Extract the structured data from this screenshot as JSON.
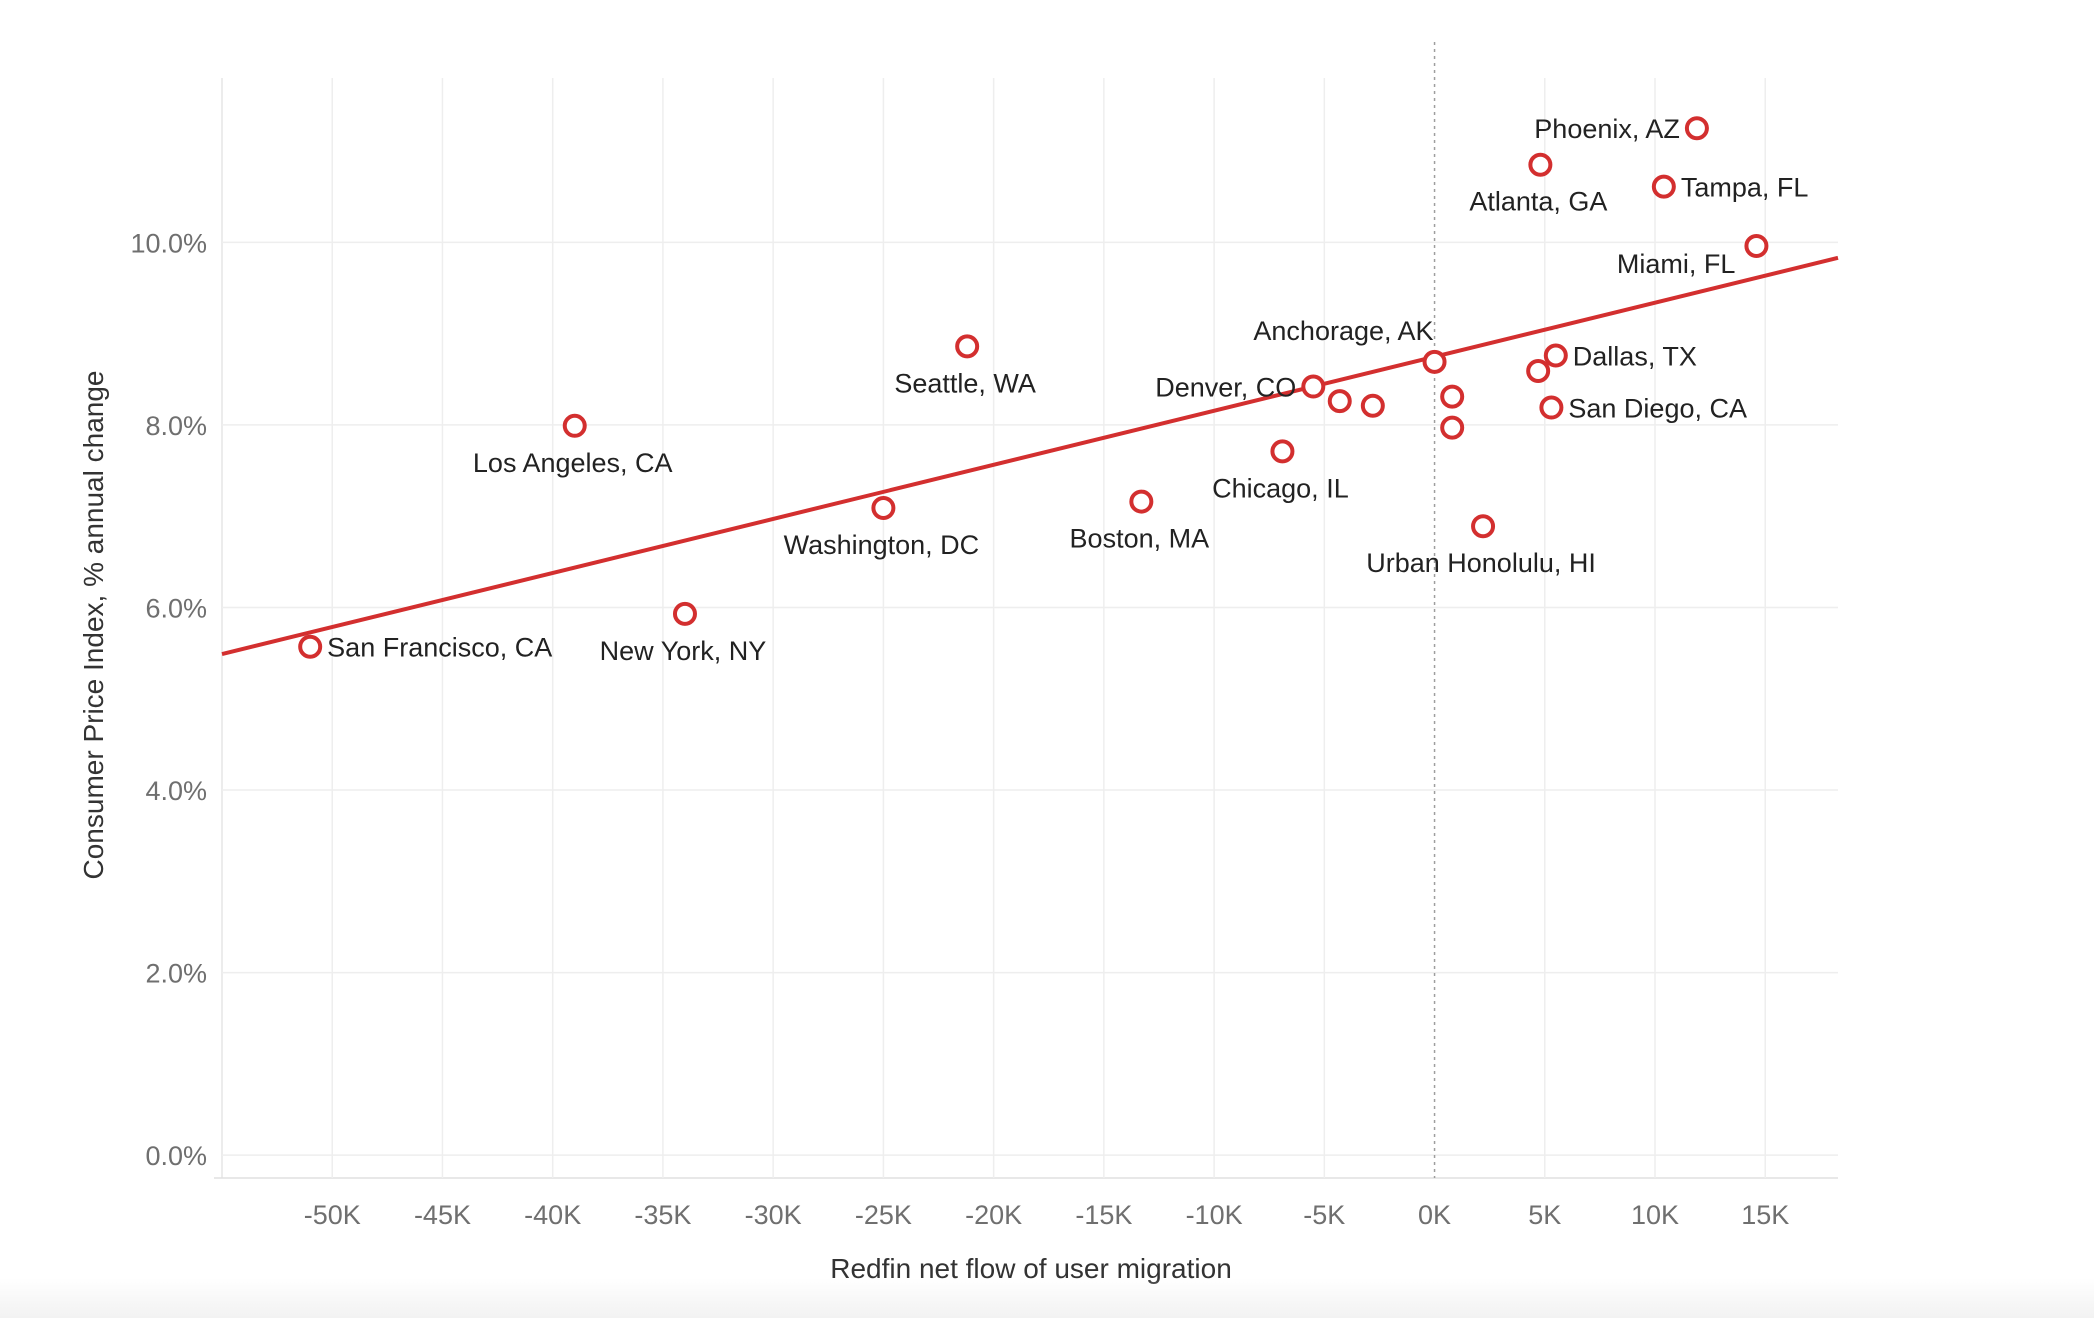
{
  "chart_data": {
    "type": "scatter",
    "title": "",
    "xlabel": "Redfin net flow of user migration",
    "ylabel": "Consumer Price Index, % annual change",
    "xlim": [
      -55,
      18.3
    ],
    "ylim": [
      -0.25,
      11.8
    ],
    "x_ticks": [
      {
        "value": -50,
        "label": "-50K"
      },
      {
        "value": -45,
        "label": "-45K"
      },
      {
        "value": -40,
        "label": "-40K"
      },
      {
        "value": -35,
        "label": "-35K"
      },
      {
        "value": -30,
        "label": "-30K"
      },
      {
        "value": -25,
        "label": "-25K"
      },
      {
        "value": -20,
        "label": "-20K"
      },
      {
        "value": -15,
        "label": "-15K"
      },
      {
        "value": -10,
        "label": "-10K"
      },
      {
        "value": -5,
        "label": "-5K"
      },
      {
        "value": 0,
        "label": "0K"
      },
      {
        "value": 5,
        "label": "5K"
      },
      {
        "value": 10,
        "label": "10K"
      },
      {
        "value": 15,
        "label": "15K"
      }
    ],
    "y_ticks": [
      {
        "value": 0,
        "label": "0.0%"
      },
      {
        "value": 2,
        "label": "2.0%"
      },
      {
        "value": 4,
        "label": "4.0%"
      },
      {
        "value": 6,
        "label": "6.0%"
      },
      {
        "value": 8,
        "label": "8.0%"
      },
      {
        "value": 10,
        "label": "10.0%"
      }
    ],
    "grid": true,
    "zero_reference_line": {
      "x": 0,
      "style": "dotted"
    },
    "marker_color": "#d32f2f",
    "trend_color": "#d32f2f",
    "points": [
      {
        "label": "San Francisco, CA",
        "x": -51.0,
        "y": 5.57,
        "label_pos": "right"
      },
      {
        "label": "Los Angeles, CA",
        "x": -39.0,
        "y": 7.99,
        "label_pos": "below"
      },
      {
        "label": "New York, NY",
        "x": -34.0,
        "y": 5.93,
        "label_pos": "below"
      },
      {
        "label": "Washington, DC",
        "x": -25.0,
        "y": 7.09,
        "label_pos": "below"
      },
      {
        "label": "Seattle, WA",
        "x": -21.2,
        "y": 8.86,
        "label_pos": "below"
      },
      {
        "label": "Boston, MA",
        "x": -13.3,
        "y": 7.16,
        "label_pos": "below"
      },
      {
        "label": "Chicago, IL",
        "x": -6.9,
        "y": 7.71,
        "label_pos": "below"
      },
      {
        "label": "Denver, CO",
        "x": -5.5,
        "y": 8.42,
        "label_pos": "left"
      },
      {
        "label": "",
        "x": -4.3,
        "y": 8.26,
        "label_pos": "none"
      },
      {
        "label": "",
        "x": -2.8,
        "y": 8.21,
        "label_pos": "none"
      },
      {
        "label": "Anchorage, AK",
        "x": 0.0,
        "y": 8.69,
        "label_pos": "above-left"
      },
      {
        "label": "",
        "x": 0.8,
        "y": 8.31,
        "label_pos": "none"
      },
      {
        "label": "",
        "x": 0.8,
        "y": 7.97,
        "label_pos": "none"
      },
      {
        "label": "Urban Honolulu, HI",
        "x": 2.2,
        "y": 6.89,
        "label_pos": "below"
      },
      {
        "label": "",
        "x": 4.7,
        "y": 8.59,
        "label_pos": "none"
      },
      {
        "label": "Atlanta, GA",
        "x": 4.8,
        "y": 10.85,
        "label_pos": "below"
      },
      {
        "label": "San Diego, CA",
        "x": 5.3,
        "y": 8.19,
        "label_pos": "right"
      },
      {
        "label": "Dallas, TX",
        "x": 5.5,
        "y": 8.76,
        "label_pos": "right"
      },
      {
        "label": "Tampa, FL",
        "x": 10.4,
        "y": 10.61,
        "label_pos": "right"
      },
      {
        "label": "Phoenix, AZ",
        "x": 11.9,
        "y": 11.25,
        "label_pos": "left"
      },
      {
        "label": "Miami, FL",
        "x": 14.6,
        "y": 9.96,
        "label_pos": "below-left"
      }
    ],
    "trend_line": {
      "x1": -55,
      "y1": 5.49,
      "x2": 18.3,
      "y2": 9.83
    }
  }
}
